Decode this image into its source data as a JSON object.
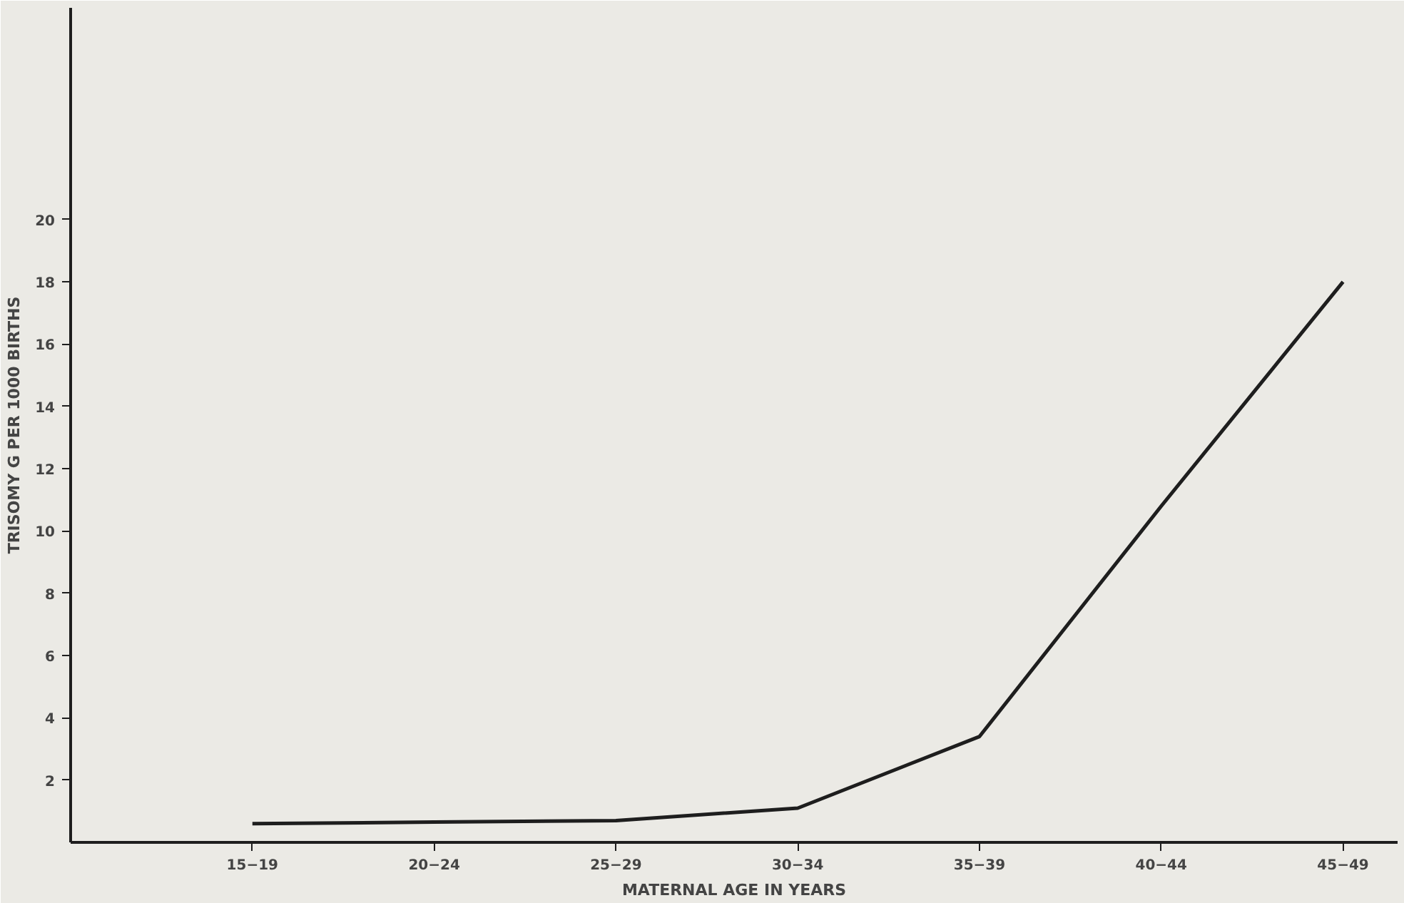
{
  "chart_data": {
    "type": "line",
    "xlabel": "MATERNAL AGE IN YEARS",
    "ylabel": "TRISOMY G PER 1000 BIRTHS",
    "categories": [
      "15−19",
      "20−24",
      "25−29",
      "30−34",
      "35−39",
      "40−44",
      "45−49"
    ],
    "series": [
      {
        "color": "#1e1e1e",
        "values": [
          0.6,
          0.65,
          0.7,
          1.1,
          3.4,
          10.8,
          18.0
        ]
      }
    ],
    "ylim": [
      0,
      26.8
    ],
    "yticks": [
      2,
      4,
      6,
      8,
      10,
      12,
      14,
      16,
      18,
      20
    ],
    "grid": false,
    "marker": "none",
    "line_style": "solid"
  }
}
